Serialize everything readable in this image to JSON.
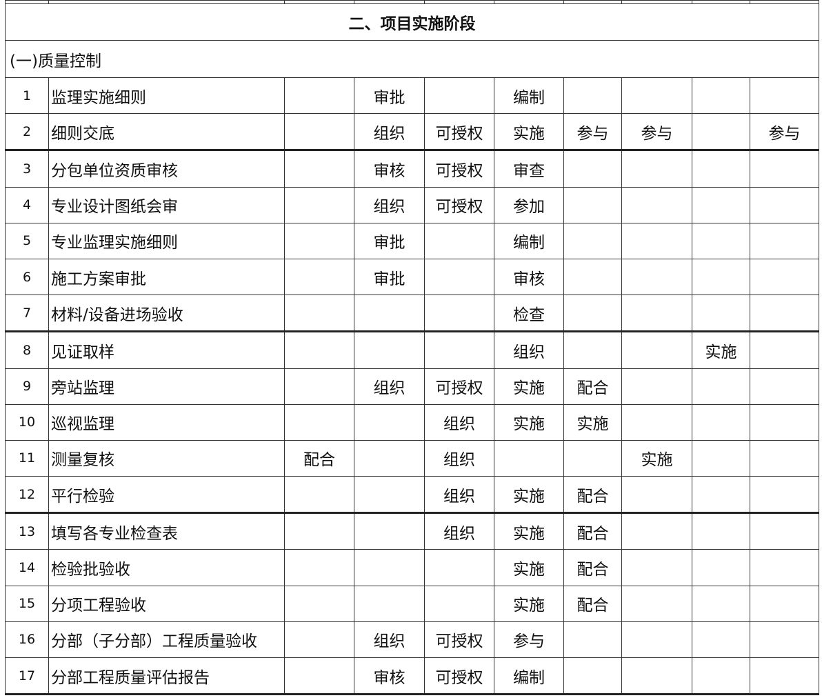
{
  "table": {
    "title": "二、项目实施阶段",
    "section": "(一)质量控制",
    "rows": [
      [
        "1",
        "监理实施细则",
        null,
        "审批",
        null,
        "编制",
        null,
        null,
        null,
        null
      ],
      [
        "2",
        "细则交底",
        null,
        "组织",
        "可授权",
        "实施",
        "参与",
        "参与",
        null,
        "参与"
      ],
      [
        "3",
        "分包单位资质审核",
        null,
        "审核",
        "可授权",
        "审查",
        null,
        null,
        null,
        null
      ],
      [
        "4",
        "专业设计图纸会审",
        null,
        "组织",
        "可授权",
        "参加",
        null,
        null,
        null,
        null
      ],
      [
        "5",
        "专业监理实施细则",
        null,
        "审批",
        null,
        "编制",
        null,
        null,
        null,
        null
      ],
      [
        "6",
        "施工方案审批",
        null,
        "审批",
        null,
        "审核",
        null,
        null,
        null,
        null
      ],
      [
        "7",
        "材料/设备进场验收",
        null,
        null,
        null,
        "检查",
        null,
        null,
        null,
        null
      ],
      [
        "8",
        "见证取样",
        null,
        null,
        null,
        "组织",
        null,
        null,
        "实施",
        null
      ],
      [
        "9",
        "旁站监理",
        null,
        "组织",
        "可授权",
        "实施",
        "配合",
        null,
        null,
        null
      ],
      [
        "10",
        "巡视监理",
        null,
        null,
        "组织",
        "实施",
        "实施",
        null,
        null,
        null
      ],
      [
        "11",
        "测量复核",
        "配合",
        null,
        "组织",
        null,
        null,
        "实施",
        null,
        null
      ],
      [
        "12",
        "平行检验",
        null,
        null,
        "组织",
        "实施",
        "配合",
        null,
        null,
        null
      ],
      [
        "13",
        "填写各专业检查表",
        null,
        null,
        "组织",
        "实施",
        "配合",
        null,
        null,
        null
      ],
      [
        "14",
        "检验批验收",
        null,
        null,
        null,
        "实施",
        "配合",
        null,
        null,
        null
      ],
      [
        "15",
        "分项工程验收",
        null,
        null,
        null,
        "实施",
        "配合",
        null,
        null,
        null
      ],
      [
        "16",
        "分部（子分部）工程质量验收",
        null,
        "组织",
        "可授权",
        "参与",
        null,
        null,
        null,
        null
      ],
      [
        "17",
        "分部工程质量评估报告",
        null,
        "审核",
        "可授权",
        "编制",
        null,
        null,
        null,
        null
      ]
    ]
  }
}
